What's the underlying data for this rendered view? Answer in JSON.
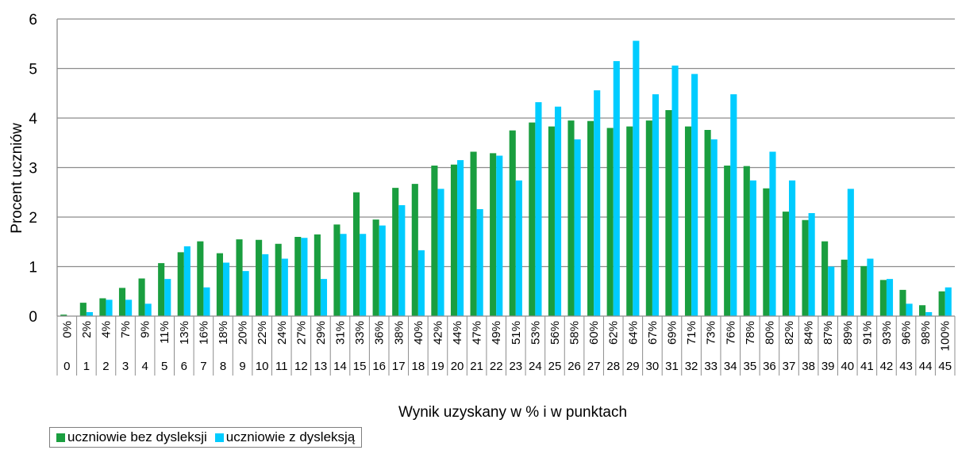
{
  "colors": {
    "without": "#1a9e3f",
    "with": "#00ccff",
    "grid": "#8c8c8c"
  },
  "chart_data": {
    "type": "bar",
    "xlabel": "Wynik uzyskany w % i w punktach",
    "ylabel": "Procent uczniów",
    "ylim": [
      0,
      6
    ],
    "yticks": [
      "0",
      "1",
      "2",
      "3",
      "4",
      "5",
      "6"
    ],
    "grid": true,
    "legend_position": "bottom-left",
    "categories_percent": [
      "0%",
      "2%",
      "4%",
      "7%",
      "9%",
      "11%",
      "13%",
      "16%",
      "18%",
      "20%",
      "22%",
      "24%",
      "27%",
      "29%",
      "31%",
      "33%",
      "36%",
      "38%",
      "40%",
      "42%",
      "44%",
      "47%",
      "49%",
      "51%",
      "53%",
      "56%",
      "58%",
      "60%",
      "62%",
      "64%",
      "67%",
      "69%",
      "71%",
      "73%",
      "76%",
      "78%",
      "80%",
      "82%",
      "84%",
      "87%",
      "89%",
      "91%",
      "93%",
      "96%",
      "98%",
      "100%"
    ],
    "categories_points": [
      "0",
      "1",
      "2",
      "3",
      "4",
      "5",
      "6",
      "7",
      "8",
      "9",
      "10",
      "11",
      "12",
      "13",
      "14",
      "15",
      "16",
      "17",
      "18",
      "19",
      "20",
      "21",
      "22",
      "23",
      "24",
      "25",
      "26",
      "27",
      "28",
      "29",
      "30",
      "31",
      "32",
      "33",
      "34",
      "35",
      "36",
      "37",
      "38",
      "39",
      "40",
      "41",
      "42",
      "43",
      "44",
      "45"
    ],
    "series": [
      {
        "name": "uczniowie bez dysleksji",
        "values": [
          0.03,
          0.27,
          0.36,
          0.57,
          0.76,
          1.07,
          1.29,
          1.51,
          1.27,
          1.55,
          1.54,
          1.46,
          1.6,
          1.65,
          1.85,
          2.5,
          1.95,
          2.59,
          2.67,
          3.04,
          3.06,
          3.32,
          3.29,
          3.75,
          3.91,
          3.83,
          3.95,
          3.94,
          3.8,
          3.83,
          3.95,
          4.16,
          3.83,
          3.76,
          3.04,
          3.03,
          2.58,
          2.11,
          1.94,
          1.51,
          1.14,
          1.01,
          0.73,
          0.53,
          0.22,
          0.5
        ]
      },
      {
        "name": "uczniowie z dysleksją",
        "values": [
          0.0,
          0.08,
          0.33,
          0.33,
          0.25,
          0.75,
          1.41,
          0.58,
          1.08,
          0.91,
          1.25,
          1.16,
          1.58,
          0.75,
          1.66,
          1.66,
          1.83,
          2.24,
          1.33,
          2.57,
          3.15,
          2.16,
          3.24,
          2.74,
          4.32,
          4.23,
          3.57,
          4.56,
          5.15,
          5.56,
          4.48,
          5.06,
          4.89,
          3.57,
          4.48,
          2.74,
          3.32,
          2.74,
          2.08,
          1.0,
          2.57,
          1.16,
          0.75,
          0.25,
          0.08,
          0.58
        ]
      }
    ]
  }
}
